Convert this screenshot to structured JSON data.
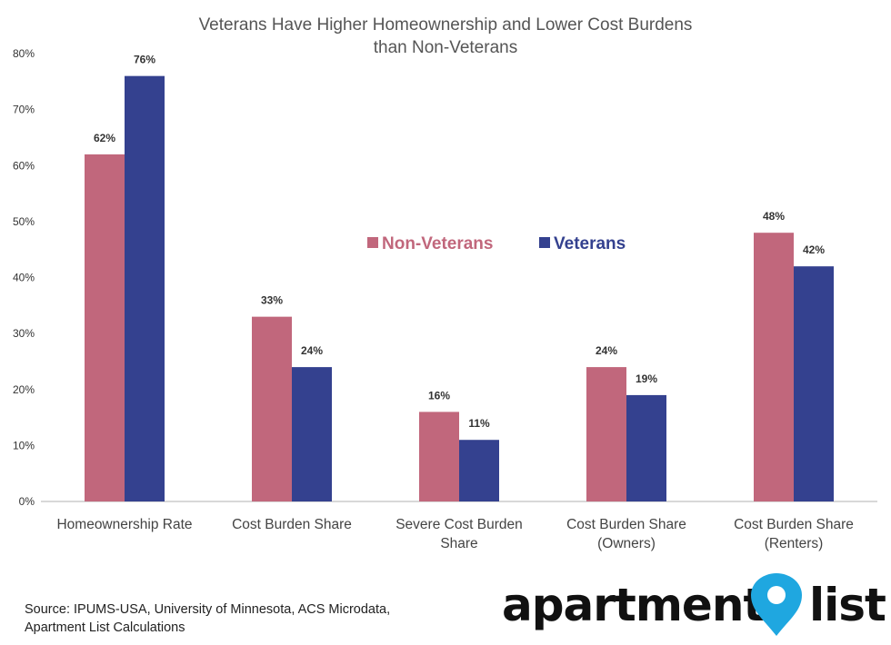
{
  "chart_data": {
    "type": "bar",
    "title": "Veterans Have Higher Homeownership and Lower Cost Burdens than Non-Veterans",
    "title_lines": [
      "Veterans Have Higher Homeownership and Lower Cost Burdens",
      "than Non-Veterans"
    ],
    "categories": [
      [
        "Homeownership Rate"
      ],
      [
        "Cost Burden Share"
      ],
      [
        "Severe Cost Burden",
        "Share"
      ],
      [
        "Cost Burden Share",
        "(Owners)"
      ],
      [
        "Cost Burden Share",
        "(Renters)"
      ]
    ],
    "series": [
      {
        "name": "Non-Veterans",
        "color": "#c1677c",
        "values": [
          62,
          33,
          16,
          24,
          48
        ],
        "labels": [
          "62%",
          "33%",
          "16%",
          "24%",
          "48%"
        ]
      },
      {
        "name": "Veterans",
        "color": "#34418f",
        "values": [
          76,
          24,
          11,
          19,
          42
        ],
        "labels": [
          "76%",
          "24%",
          "11%",
          "19%",
          "42%"
        ]
      }
    ],
    "ylim": [
      0,
      80
    ],
    "yticks": [
      0,
      10,
      20,
      30,
      40,
      50,
      60,
      70,
      80
    ],
    "ytick_labels": [
      "0%",
      "10%",
      "20%",
      "30%",
      "40%",
      "50%",
      "60%",
      "70%",
      "80%"
    ],
    "xlabel": "",
    "ylabel": "",
    "grid": false,
    "legend_position": "center"
  },
  "source": {
    "line1": "Source: IPUMS-USA, University of Minnesota, ACS Microdata,",
    "line2": "Apartment List Calculations"
  },
  "logo": {
    "word1": "apartment",
    "word2": "list",
    "pin_color": "#1fa7e0",
    "icon": "map-pin-icon"
  }
}
